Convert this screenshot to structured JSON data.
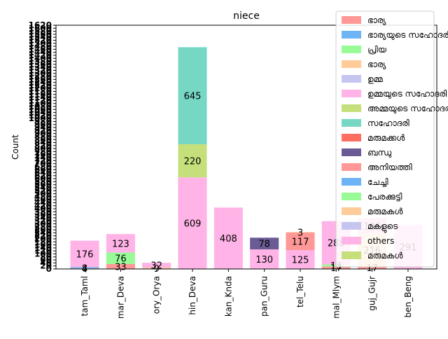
{
  "chart_data": {
    "type": "bar",
    "stacked": true,
    "title": "niece",
    "xlabel": "",
    "ylabel": "Count",
    "ylim": [
      0,
      1620
    ],
    "categories": [
      "tam_Taml",
      "mar_Deva",
      "ory_Orya",
      "hin_Deva",
      "kan_Knda",
      "pan_Guru",
      "tel_Telu",
      "mal_Mlym",
      "guj_Gujr",
      "ben_Beng"
    ],
    "series": [
      {
        "name": "ഭാര്യ",
        "color": "#ff9896",
        "values": [
          4,
          33,
          0,
          0,
          0,
          0,
          0,
          17,
          17,
          0
        ]
      },
      {
        "name": "ഭാര്യയുടെ സഹോദരി",
        "color": "#6cb4f6",
        "values": [
          8,
          0,
          0,
          0,
          0,
          0,
          0,
          0,
          0,
          0
        ]
      },
      {
        "name": "പ്രിയ",
        "color": "#98fb98",
        "values": [
          0,
          76,
          0,
          0,
          0,
          0,
          0,
          13,
          0,
          0
        ]
      },
      {
        "name": "ഭാര്യ",
        "color": "#ffcc99",
        "values": [
          0,
          0,
          9,
          0,
          0,
          0,
          0,
          0,
          216,
          0
        ]
      },
      {
        "name": "ഉമ്മ",
        "color": "#c5c5f0",
        "values": [
          0,
          0,
          0,
          0,
          0,
          0,
          0,
          0,
          0,
          0
        ]
      },
      {
        "name": "ഉമ്മയുടെ സഹോദരി",
        "color": "#ffb3e6",
        "values": [
          176,
          123,
          32,
          609,
          408,
          130,
          125,
          288,
          0,
          291
        ]
      },
      {
        "name": "അമ്മയുടെ സഹോദരി",
        "color": "#c5e07a",
        "values": [
          0,
          0,
          0,
          220,
          0,
          0,
          0,
          0,
          0,
          0
        ]
      },
      {
        "name": "സഹോദരി",
        "color": "#76d7c4",
        "values": [
          0,
          0,
          0,
          645,
          0,
          0,
          0,
          0,
          0,
          0
        ]
      },
      {
        "name": "മരുമക്കൾ",
        "color": "#ff6f61",
        "values": [
          0,
          0,
          0,
          0,
          0,
          0,
          0,
          0,
          0,
          0
        ]
      },
      {
        "name": "ബന്ധു",
        "color": "#6b5b95",
        "values": [
          0,
          0,
          0,
          0,
          0,
          78,
          0,
          0,
          0,
          0
        ]
      },
      {
        "name": "അനിയത്തി",
        "color": "#ff9896",
        "values": [
          0,
          0,
          0,
          0,
          0,
          0,
          117,
          0,
          0,
          0
        ]
      },
      {
        "name": "ചേച്ചി",
        "color": "#6cb4f6",
        "values": [
          0,
          0,
          0,
          0,
          0,
          0,
          0,
          0,
          0,
          0
        ]
      },
      {
        "name": "പേരക്കുട്ടി",
        "color": "#98fb98",
        "values": [
          0,
          0,
          0,
          0,
          0,
          0,
          0,
          0,
          0,
          0
        ]
      },
      {
        "name": "മരുമകൾ",
        "color": "#ffcc99",
        "values": [
          0,
          0,
          0,
          0,
          0,
          0,
          3,
          0,
          0,
          0
        ]
      },
      {
        "name": "മകളുടെ",
        "color": "#c5c5f0",
        "values": [
          0,
          0,
          0,
          0,
          0,
          0,
          0,
          0,
          0,
          0
        ]
      },
      {
        "name": "others",
        "color": "#ffb3e6",
        "values": [
          0,
          0,
          0,
          0,
          0,
          0,
          0,
          0,
          106,
          0
        ]
      },
      {
        "name": "മരുമകൾ",
        "color": "#c5e07a",
        "values": [
          0,
          0,
          0,
          0,
          0,
          0,
          0,
          0,
          0,
          0
        ]
      }
    ],
    "legend_position": "upper-right",
    "grid": false
  }
}
